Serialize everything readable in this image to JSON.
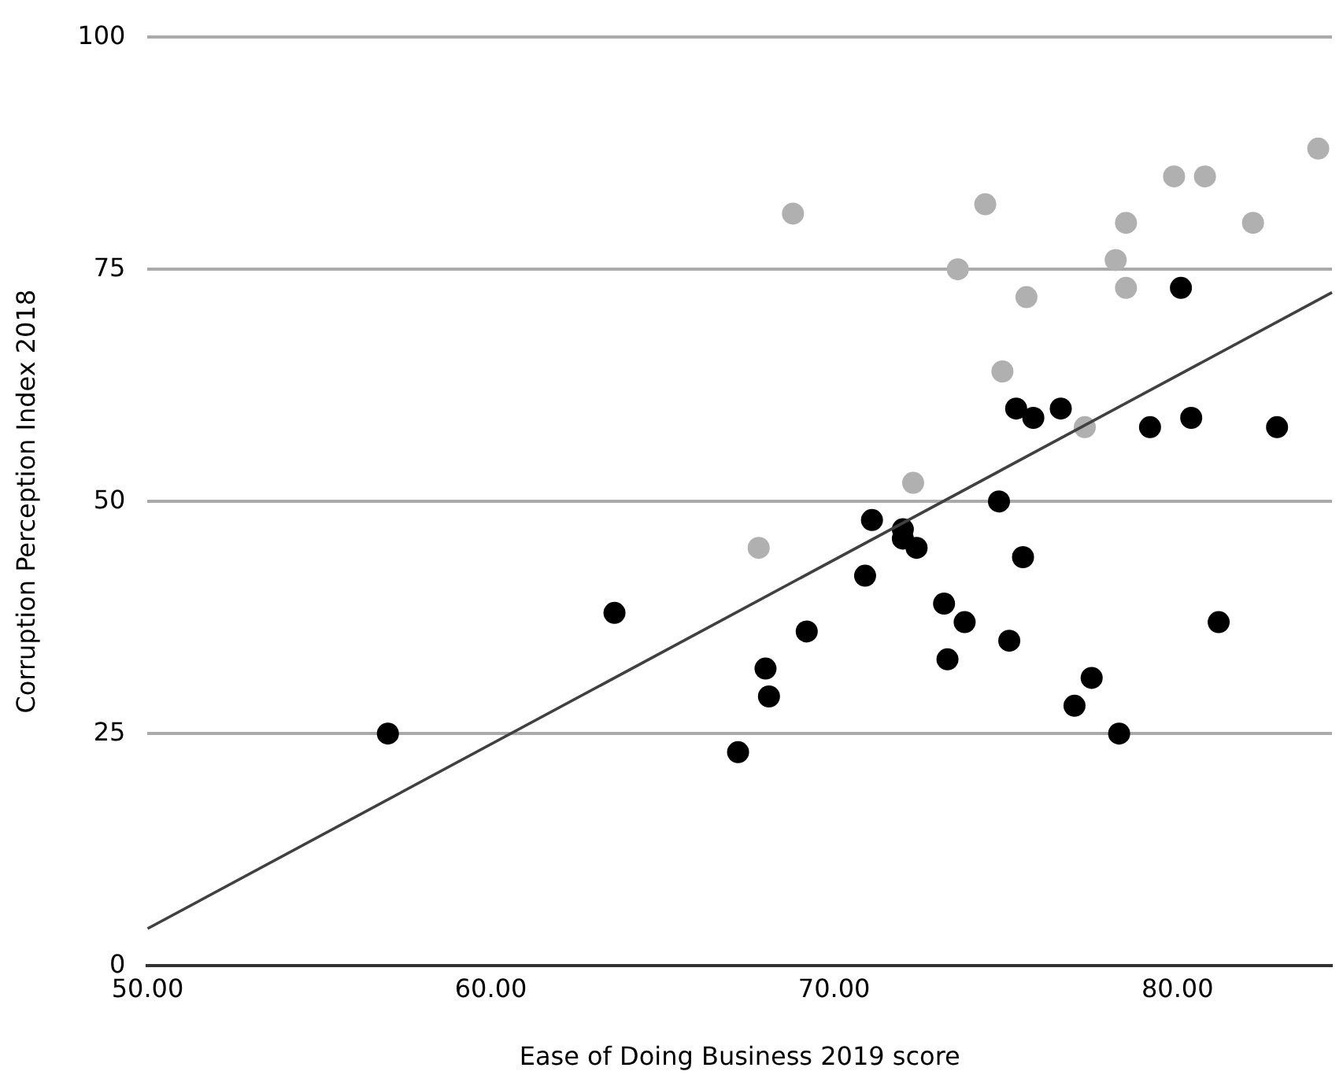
{
  "chart_data": {
    "type": "scatter",
    "xlabel": "Ease of Doing Business 2019 score",
    "ylabel": "Corruption Perception Index 2018",
    "xlim": [
      50,
      84.5
    ],
    "ylim": [
      0,
      100
    ],
    "xticks": [
      {
        "value": 50,
        "label": "50.00"
      },
      {
        "value": 60,
        "label": "60.00"
      },
      {
        "value": 70,
        "label": "70.00"
      },
      {
        "value": 80,
        "label": "80.00"
      }
    ],
    "yticks": [
      0,
      25,
      50,
      75,
      100
    ],
    "grid": "y",
    "legend": false,
    "marker": "circle",
    "series": [
      {
        "color": "#b0b0b0",
        "x": [
          67.8,
          68.8,
          72.3,
          73.6,
          74.4,
          74.9,
          75.6,
          77.3,
          78.2,
          78.5,
          78.5,
          79.9,
          80.8,
          82.2,
          84.1
        ],
        "values": [
          45,
          81,
          52,
          75,
          82,
          64,
          72,
          58,
          76,
          80,
          73,
          85,
          85,
          80,
          88
        ]
      },
      {
        "color": "#000000",
        "x": [
          57.0,
          63.6,
          67.2,
          68.0,
          68.1,
          69.2,
          70.9,
          71.1,
          72.0,
          72.0,
          72.4,
          73.2,
          73.3,
          73.8,
          74.8,
          75.1,
          75.5,
          77.0,
          77.5,
          78.3,
          81.2,
          75.3,
          75.8,
          76.6,
          79.2,
          80.1,
          80.4,
          82.9
        ],
        "values": [
          25,
          38,
          23,
          32,
          29,
          36,
          42,
          48,
          47,
          46,
          45,
          39,
          33,
          37,
          50,
          35,
          44,
          28,
          31,
          25,
          37,
          60,
          59,
          60,
          58,
          73,
          59,
          58
        ]
      },
      {
        "type": "line",
        "marker": "none",
        "color": "#404040",
        "x": [
          50,
          84.5
        ],
        "values": [
          4,
          72.5
        ]
      }
    ]
  }
}
